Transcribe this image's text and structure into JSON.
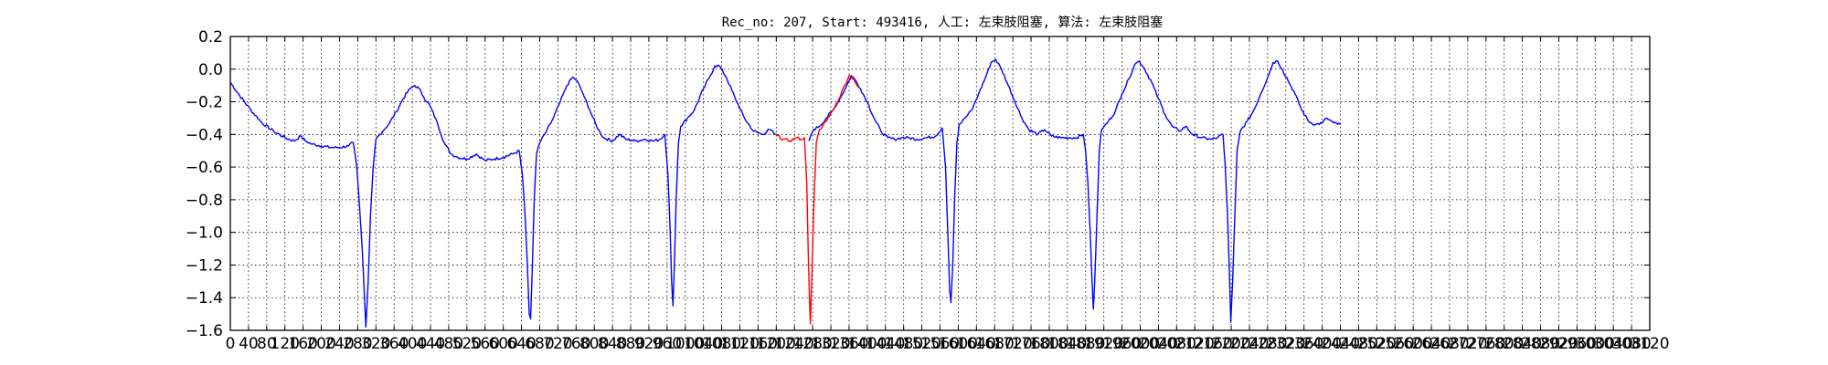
{
  "chart_data": {
    "type": "line",
    "title": "Rec_no: 207, Start: 493416, 人工: 左束肢阻塞, 算法: 左束肢阻塞",
    "xlabel": "",
    "ylabel": "",
    "xlim": [
      0,
      3120
    ],
    "ylim": [
      -1.6,
      0.2
    ],
    "grid": true,
    "xticks": [
      0,
      40,
      80,
      120,
      160,
      200,
      240,
      280,
      320,
      360,
      400,
      440,
      480,
      520,
      560,
      600,
      640,
      680,
      720,
      760,
      800,
      840,
      880,
      920,
      960,
      1000,
      1040,
      1080,
      1120,
      1160,
      1200,
      1240,
      1280,
      1320,
      1360,
      1400,
      1440,
      1480,
      1520,
      1560,
      1600,
      1640,
      1680,
      1720,
      1760,
      1800,
      1840,
      1880,
      1920,
      1960,
      2000,
      2040,
      2080,
      2120,
      2160,
      2200,
      2240,
      2280,
      2320,
      2360,
      2400,
      2440,
      2480,
      2520,
      2560,
      2600,
      2640,
      2680,
      2720,
      2760,
      2800,
      2840,
      2880,
      2920,
      2960,
      3000,
      3040,
      3080,
      3120
    ],
    "xtick_labels": [
      "0",
      "40",
      "80",
      "120",
      "160",
      "200",
      "240",
      "280",
      "320",
      "360",
      "400",
      "440",
      "480",
      "520",
      "560",
      "600",
      "640",
      "680",
      "720",
      "760",
      "800",
      "840",
      "880",
      "920",
      "960",
      "1000",
      "1040",
      "1080",
      "1120",
      "1160",
      "1200",
      "1240",
      "1280",
      "1320",
      "1360",
      "1400",
      "1440",
      "1480",
      "1520",
      "1560",
      "1600",
      "1640",
      "1680",
      "1720",
      "1760",
      "1800",
      "1840",
      "1880",
      "1920",
      "1960",
      "2000",
      "2040",
      "2080",
      "2120",
      "2160",
      "2200",
      "2240",
      "2280",
      "2320",
      "2360",
      "2400",
      "2440",
      "2480",
      "2520",
      "2560",
      "2600",
      "2640",
      "2680",
      "2720",
      "2760",
      "2800",
      "2840",
      "2880",
      "2920",
      "2960",
      "3000",
      "3040",
      "3080",
      "3120"
    ],
    "yticks": [
      0.2,
      0.0,
      -0.2,
      -0.4,
      -0.6,
      -0.8,
      -1.0,
      -1.2,
      -1.4,
      -1.6
    ],
    "ytick_labels": [
      "0.2",
      "0.0",
      "−0.2",
      "−0.4",
      "−0.6",
      "−0.8",
      "−1.0",
      "−1.2",
      "−1.4",
      "−1.6"
    ],
    "series": [
      {
        "color": "#0000ff",
        "segments": [
          [
            [
              0,
              -0.08
            ],
            [
              20,
              -0.16
            ],
            [
              45,
              -0.25
            ],
            [
              70,
              -0.33
            ],
            [
              95,
              -0.38
            ],
            [
              120,
              -0.42
            ],
            [
              140,
              -0.44
            ],
            [
              155,
              -0.41
            ],
            [
              165,
              -0.44
            ],
            [
              180,
              -0.46
            ],
            [
              200,
              -0.47
            ],
            [
              220,
              -0.48
            ],
            [
              240,
              -0.48
            ],
            [
              260,
              -0.47
            ],
            [
              270,
              -0.45
            ],
            [
              278,
              -0.6
            ],
            [
              283,
              -0.8
            ],
            [
              290,
              -1.1
            ],
            [
              295,
              -1.4
            ],
            [
              298,
              -1.58
            ],
            [
              303,
              -1.3
            ],
            [
              308,
              -0.9
            ],
            [
              314,
              -0.6
            ],
            [
              320,
              -0.43
            ],
            [
              335,
              -0.38
            ],
            [
              350,
              -0.33
            ],
            [
              365,
              -0.26
            ],
            [
              380,
              -0.18
            ],
            [
              395,
              -0.12
            ],
            [
              405,
              -0.1
            ],
            [
              415,
              -0.12
            ],
            [
              425,
              -0.17
            ],
            [
              440,
              -0.23
            ],
            [
              455,
              -0.33
            ],
            [
              470,
              -0.45
            ],
            [
              485,
              -0.52
            ],
            [
              500,
              -0.54
            ],
            [
              520,
              -0.55
            ],
            [
              540,
              -0.52
            ],
            [
              560,
              -0.56
            ],
            [
              580,
              -0.55
            ],
            [
              600,
              -0.54
            ],
            [
              620,
              -0.52
            ],
            [
              635,
              -0.5
            ],
            [
              642,
              -0.65
            ],
            [
              648,
              -0.9
            ],
            [
              653,
              -1.2
            ],
            [
              657,
              -1.5
            ],
            [
              660,
              -1.53
            ],
            [
              664,
              -1.2
            ],
            [
              668,
              -0.8
            ],
            [
              673,
              -0.52
            ],
            [
              680,
              -0.45
            ],
            [
              695,
              -0.38
            ],
            [
              710,
              -0.3
            ],
            [
              725,
              -0.2
            ],
            [
              740,
              -0.1
            ],
            [
              752,
              -0.05
            ],
            [
              762,
              -0.07
            ],
            [
              775,
              -0.15
            ],
            [
              790,
              -0.25
            ],
            [
              805,
              -0.35
            ],
            [
              820,
              -0.42
            ],
            [
              840,
              -0.44
            ],
            [
              855,
              -0.4
            ],
            [
              870,
              -0.43
            ],
            [
              890,
              -0.44
            ],
            [
              910,
              -0.43
            ],
            [
              930,
              -0.44
            ],
            [
              945,
              -0.43
            ],
            [
              955,
              -0.4
            ],
            [
              962,
              -0.65
            ],
            [
              967,
              -1.0
            ],
            [
              970,
              -1.3
            ],
            [
              973,
              -1.45
            ],
            [
              976,
              -1.2
            ],
            [
              980,
              -0.8
            ],
            [
              985,
              -0.45
            ],
            [
              990,
              -0.35
            ],
            [
              1005,
              -0.3
            ],
            [
              1020,
              -0.25
            ],
            [
              1040,
              -0.12
            ],
            [
              1055,
              -0.04
            ],
            [
              1065,
              0.02
            ],
            [
              1075,
              0.02
            ],
            [
              1090,
              -0.05
            ],
            [
              1110,
              -0.18
            ],
            [
              1130,
              -0.3
            ],
            [
              1150,
              -0.38
            ],
            [
              1170,
              -0.4
            ],
            [
              1185,
              -0.37
            ],
            [
              1198,
              -0.4
            ]
          ],
          [
            [
              1272,
              -0.44
            ],
            [
              1282,
              -0.37
            ],
            [
              1295,
              -0.35
            ],
            [
              1310,
              -0.3
            ],
            [
              1325,
              -0.25
            ],
            [
              1340,
              -0.18
            ],
            [
              1355,
              -0.1
            ],
            [
              1365,
              -0.04
            ],
            [
              1372,
              -0.06
            ],
            [
              1385,
              -0.12
            ],
            [
              1400,
              -0.2
            ],
            [
              1415,
              -0.3
            ],
            [
              1430,
              -0.38
            ],
            [
              1445,
              -0.42
            ],
            [
              1460,
              -0.43
            ],
            [
              1475,
              -0.42
            ],
            [
              1490,
              -0.42
            ],
            [
              1510,
              -0.43
            ],
            [
              1530,
              -0.42
            ],
            [
              1550,
              -0.41
            ],
            [
              1565,
              -0.36
            ],
            [
              1572,
              -0.6
            ],
            [
              1577,
              -1.0
            ],
            [
              1581,
              -1.35
            ],
            [
              1584,
              -1.43
            ],
            [
              1588,
              -1.2
            ],
            [
              1592,
              -0.8
            ],
            [
              1597,
              -0.45
            ],
            [
              1602,
              -0.34
            ],
            [
              1615,
              -0.3
            ],
            [
              1630,
              -0.25
            ],
            [
              1645,
              -0.15
            ],
            [
              1660,
              -0.05
            ],
            [
              1672,
              0.04
            ],
            [
              1682,
              0.06
            ],
            [
              1695,
              0.0
            ],
            [
              1710,
              -0.1
            ],
            [
              1725,
              -0.2
            ],
            [
              1740,
              -0.3
            ],
            [
              1755,
              -0.37
            ],
            [
              1775,
              -0.4
            ],
            [
              1790,
              -0.37
            ],
            [
              1805,
              -0.41
            ],
            [
              1825,
              -0.42
            ],
            [
              1845,
              -0.42
            ],
            [
              1860,
              -0.42
            ],
            [
              1875,
              -0.4
            ],
            [
              1880,
              -0.5
            ],
            [
              1885,
              -0.7
            ],
            [
              1890,
              -1.0
            ],
            [
              1894,
              -1.3
            ],
            [
              1897,
              -1.47
            ],
            [
              1900,
              -1.3
            ],
            [
              1905,
              -0.9
            ],
            [
              1910,
              -0.5
            ],
            [
              1915,
              -0.37
            ],
            [
              1930,
              -0.32
            ],
            [
              1945,
              -0.26
            ],
            [
              1960,
              -0.15
            ],
            [
              1975,
              -0.06
            ],
            [
              1988,
              0.03
            ],
            [
              1998,
              0.05
            ],
            [
              2010,
              0.0
            ],
            [
              2025,
              -0.08
            ],
            [
              2040,
              -0.18
            ],
            [
              2055,
              -0.28
            ],
            [
              2070,
              -0.35
            ],
            [
              2085,
              -0.38
            ],
            [
              2100,
              -0.35
            ],
            [
              2115,
              -0.4
            ],
            [
              2135,
              -0.42
            ],
            [
              2155,
              -0.43
            ],
            [
              2170,
              -0.42
            ],
            [
              2182,
              -0.4
            ],
            [
              2187,
              -0.6
            ],
            [
              2192,
              -0.9
            ],
            [
              2196,
              -1.25
            ],
            [
              2199,
              -1.55
            ],
            [
              2203,
              -1.3
            ],
            [
              2208,
              -0.9
            ],
            [
              2213,
              -0.5
            ],
            [
              2220,
              -0.38
            ],
            [
              2235,
              -0.32
            ],
            [
              2250,
              -0.25
            ],
            [
              2265,
              -0.15
            ],
            [
              2280,
              -0.05
            ],
            [
              2292,
              0.04
            ],
            [
              2302,
              0.05
            ],
            [
              2312,
              0.0
            ],
            [
              2325,
              -0.07
            ],
            [
              2340,
              -0.15
            ],
            [
              2355,
              -0.25
            ],
            [
              2370,
              -0.32
            ],
            [
              2385,
              -0.34
            ],
            [
              2400,
              -0.33
            ],
            [
              2410,
              -0.3
            ],
            [
              2425,
              -0.33
            ],
            [
              2440,
              -0.34
            ]
          ]
        ]
      },
      {
        "color": "#ff0000",
        "segments": [
          [
            [
              1198,
              -0.4
            ],
            [
              1215,
              -0.43
            ],
            [
              1230,
              -0.44
            ],
            [
              1245,
              -0.42
            ],
            [
              1255,
              -0.43
            ],
            [
              1262,
              -0.42
            ],
            [
              1267,
              -0.7
            ],
            [
              1270,
              -1.1
            ],
            [
              1273,
              -1.4
            ],
            [
              1275,
              -1.56
            ],
            [
              1279,
              -1.2
            ],
            [
              1283,
              -0.8
            ],
            [
              1288,
              -0.45
            ],
            [
              1295,
              -0.37
            ],
            [
              1310,
              -0.32
            ],
            [
              1325,
              -0.25
            ],
            [
              1338,
              -0.18
            ],
            [
              1350,
              -0.1
            ],
            [
              1360,
              -0.04
            ],
            [
              1370,
              -0.06
            ],
            [
              1380,
              -0.11
            ]
          ]
        ]
      }
    ]
  }
}
